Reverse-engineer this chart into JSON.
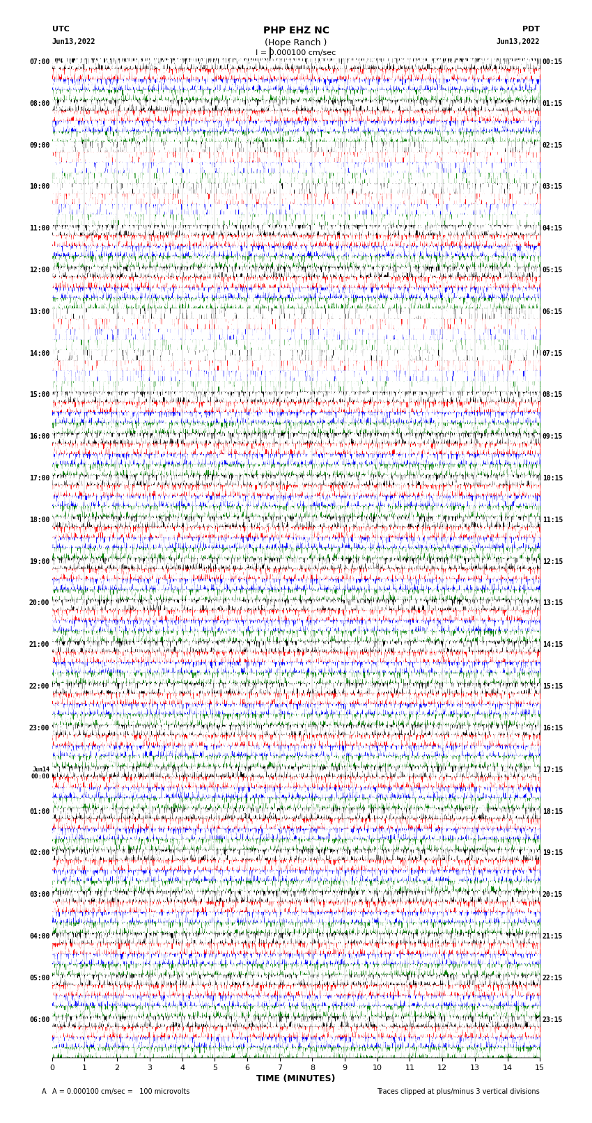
{
  "title_line1": "PHP EHZ NC",
  "title_line2": "(Hope Ranch )",
  "title_scale": "I = 0.000100 cm/sec",
  "utc_label": "UTC",
  "utc_date": "Jun13,2022",
  "pdt_label": "PDT",
  "pdt_date": "Jun13,2022",
  "left_times": [
    "07:00",
    "08:00",
    "09:00",
    "10:00",
    "11:00",
    "12:00",
    "13:00",
    "14:00",
    "15:00",
    "16:00",
    "17:00",
    "18:00",
    "19:00",
    "20:00",
    "21:00",
    "22:00",
    "23:00",
    "Jun14\n00:00",
    "01:00",
    "02:00",
    "03:00",
    "04:00",
    "05:00",
    "06:00"
  ],
  "right_times": [
    "00:15",
    "01:15",
    "02:15",
    "03:15",
    "04:15",
    "05:15",
    "06:15",
    "07:15",
    "08:15",
    "09:15",
    "10:15",
    "11:15",
    "12:15",
    "13:15",
    "14:15",
    "15:15",
    "16:15",
    "17:15",
    "18:15",
    "19:15",
    "20:15",
    "21:15",
    "22:15",
    "23:15"
  ],
  "xlabel": "TIME (MINUTES)",
  "bottom_left": "A = 0.000100 cm/sec =   100 microvolts",
  "bottom_right": "Traces clipped at plus/minus 3 vertical divisions",
  "num_rows": 24,
  "traces_per_row": 4,
  "band_colors": [
    "black",
    "red",
    "blue",
    "green"
  ],
  "waveform_color": "white",
  "xlim": [
    0,
    15
  ],
  "xticks": [
    0,
    1,
    2,
    3,
    4,
    5,
    6,
    7,
    8,
    9,
    10,
    11,
    12,
    13,
    14,
    15
  ],
  "eq_rows_mild": [
    2,
    3
  ],
  "eq_rows_strong": [
    6,
    7
  ],
  "eq_scale_mild": 3.0,
  "eq_scale_strong": 5.0,
  "base_amplitude": 0.85,
  "noise_ar_coeff": 0.7
}
